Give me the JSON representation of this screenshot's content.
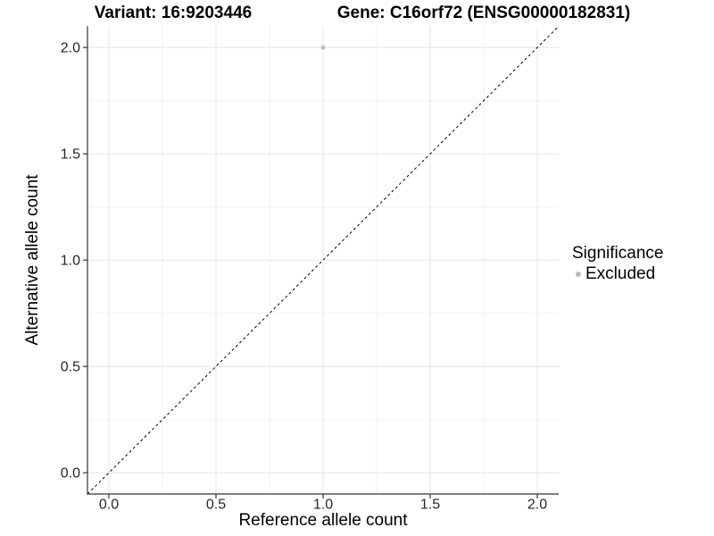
{
  "titles": {
    "variant": "Variant: 16:9203446",
    "gene": "Gene: C16orf72 (ENSG00000182831)"
  },
  "chart_data": {
    "type": "scatter",
    "title": "Variant: 16:9203446   Gene: C16orf72 (ENSG00000182831)",
    "xlabel": "Reference allele count",
    "ylabel": "Alternative allele count",
    "xlim": [
      -0.1,
      2.1
    ],
    "ylim": [
      -0.1,
      2.1
    ],
    "x_ticks": [
      0.0,
      0.5,
      1.0,
      1.5,
      2.0
    ],
    "x_tick_labels": [
      "0.0",
      "0.5",
      "1.0",
      "1.5",
      "2.0"
    ],
    "y_ticks": [
      0.0,
      0.5,
      1.0,
      1.5,
      2.0
    ],
    "y_tick_labels": [
      "0.0",
      "0.5",
      "1.0",
      "1.5",
      "2.0"
    ],
    "x_minor_ticks": [
      0.25,
      0.75,
      1.25,
      1.75
    ],
    "y_minor_ticks": [
      0.25,
      0.75,
      1.25,
      1.75
    ],
    "grid": true,
    "legend_position": "right",
    "series": [
      {
        "name": "Excluded",
        "points": [
          {
            "x": 1.0,
            "y": 2.0
          }
        ],
        "color": "#b9b9b9"
      }
    ],
    "reference_line": {
      "style": "dashed",
      "from": [
        -0.1,
        -0.1
      ],
      "to": [
        2.1,
        2.1
      ],
      "color": "#000000"
    },
    "legend": {
      "title": "Significance",
      "entries": [
        {
          "label": "Excluded",
          "color": "#b9b9b9"
        }
      ]
    },
    "colors": {
      "background": "#ffffff",
      "major_grid": "#e6e6e6",
      "minor_grid": "#f2f2f2",
      "axis_line": "#333333",
      "tick_mark": "#333333",
      "tick_label": "#262626",
      "point": "#b9b9b9"
    }
  }
}
